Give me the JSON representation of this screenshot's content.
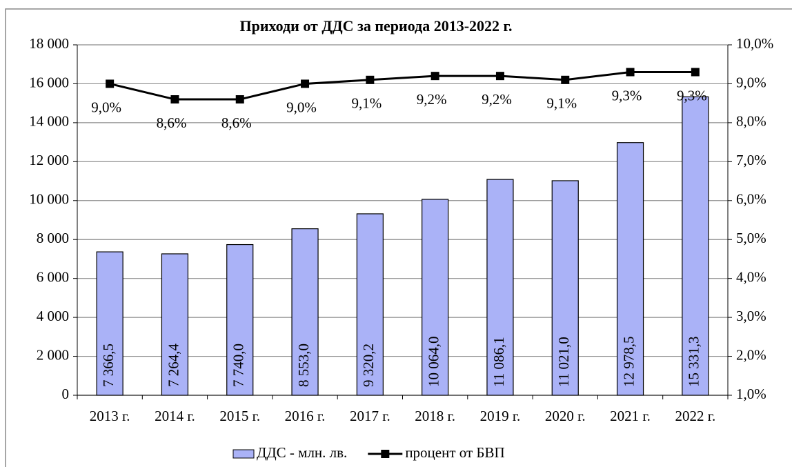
{
  "chart_data": {
    "type": "bar",
    "title": "Приходи от ДДС за периода 2013-2022 г.",
    "categories": [
      "2013 г.",
      "2014 г.",
      "2015 г.",
      "2016 г.",
      "2017 г.",
      "2018 г.",
      "2019 г.",
      "2020 г.",
      "2021 г.",
      "2022 г."
    ],
    "series": [
      {
        "name": "ДДС - млн. лв.",
        "type": "bar",
        "color": "#aab2f7",
        "values": [
          7366.5,
          7264.4,
          7740.0,
          8553.0,
          9320.2,
          10064.0,
          11086.1,
          11021.0,
          12978.5,
          15331.3
        ],
        "value_labels": [
          "7 366,5",
          "7 264,4",
          "7 740,0",
          "8 553,0",
          "9 320,2",
          "10 064,0",
          "11 086,1",
          "11 021,0",
          "12 978,5",
          "15 331,3"
        ]
      },
      {
        "name": "процент от БВП",
        "type": "line",
        "color": "#000000",
        "axis": "y2",
        "values": [
          9.0,
          8.6,
          8.6,
          9.0,
          9.1,
          9.2,
          9.2,
          9.1,
          9.3,
          9.3
        ],
        "value_labels": [
          "9,0%",
          "8,6%",
          "8,6%",
          "9,0%",
          "9,1%",
          "9,2%",
          "9,2%",
          "9,1%",
          "9,3%",
          "9,3%"
        ]
      }
    ],
    "ylim": [
      0,
      18000
    ],
    "yticks": [
      0,
      {
        "value": 2000,
        "label": "2 000"
      },
      {
        "value": 4000,
        "label": "4 000"
      },
      {
        "value": 6000,
        "label": "6 000"
      },
      {
        "value": 8000,
        "label": "8 000"
      },
      {
        "value": 10000,
        "label": "10 000"
      },
      {
        "value": 12000,
        "label": "12 000"
      },
      {
        "value": 14000,
        "label": "14 000"
      },
      {
        "value": 16000,
        "label": "16 000"
      },
      {
        "value": 18000,
        "label": "18 000"
      }
    ],
    "y2lim": [
      1,
      10
    ],
    "y2ticks": [
      {
        "value": 1,
        "label": "1,0%"
      },
      {
        "value": 2,
        "label": "2,0%"
      },
      {
        "value": 3,
        "label": "3,0%"
      },
      {
        "value": 4,
        "label": "4,0%"
      },
      {
        "value": 5,
        "label": "5,0%"
      },
      {
        "value": 6,
        "label": "6,0%"
      },
      {
        "value": 7,
        "label": "7,0%"
      },
      {
        "value": 8,
        "label": "8,0%"
      },
      {
        "value": 9,
        "label": "9,0%"
      },
      {
        "value": 10,
        "label": "10,0%"
      }
    ],
    "grid": true,
    "legend": "bottom"
  }
}
